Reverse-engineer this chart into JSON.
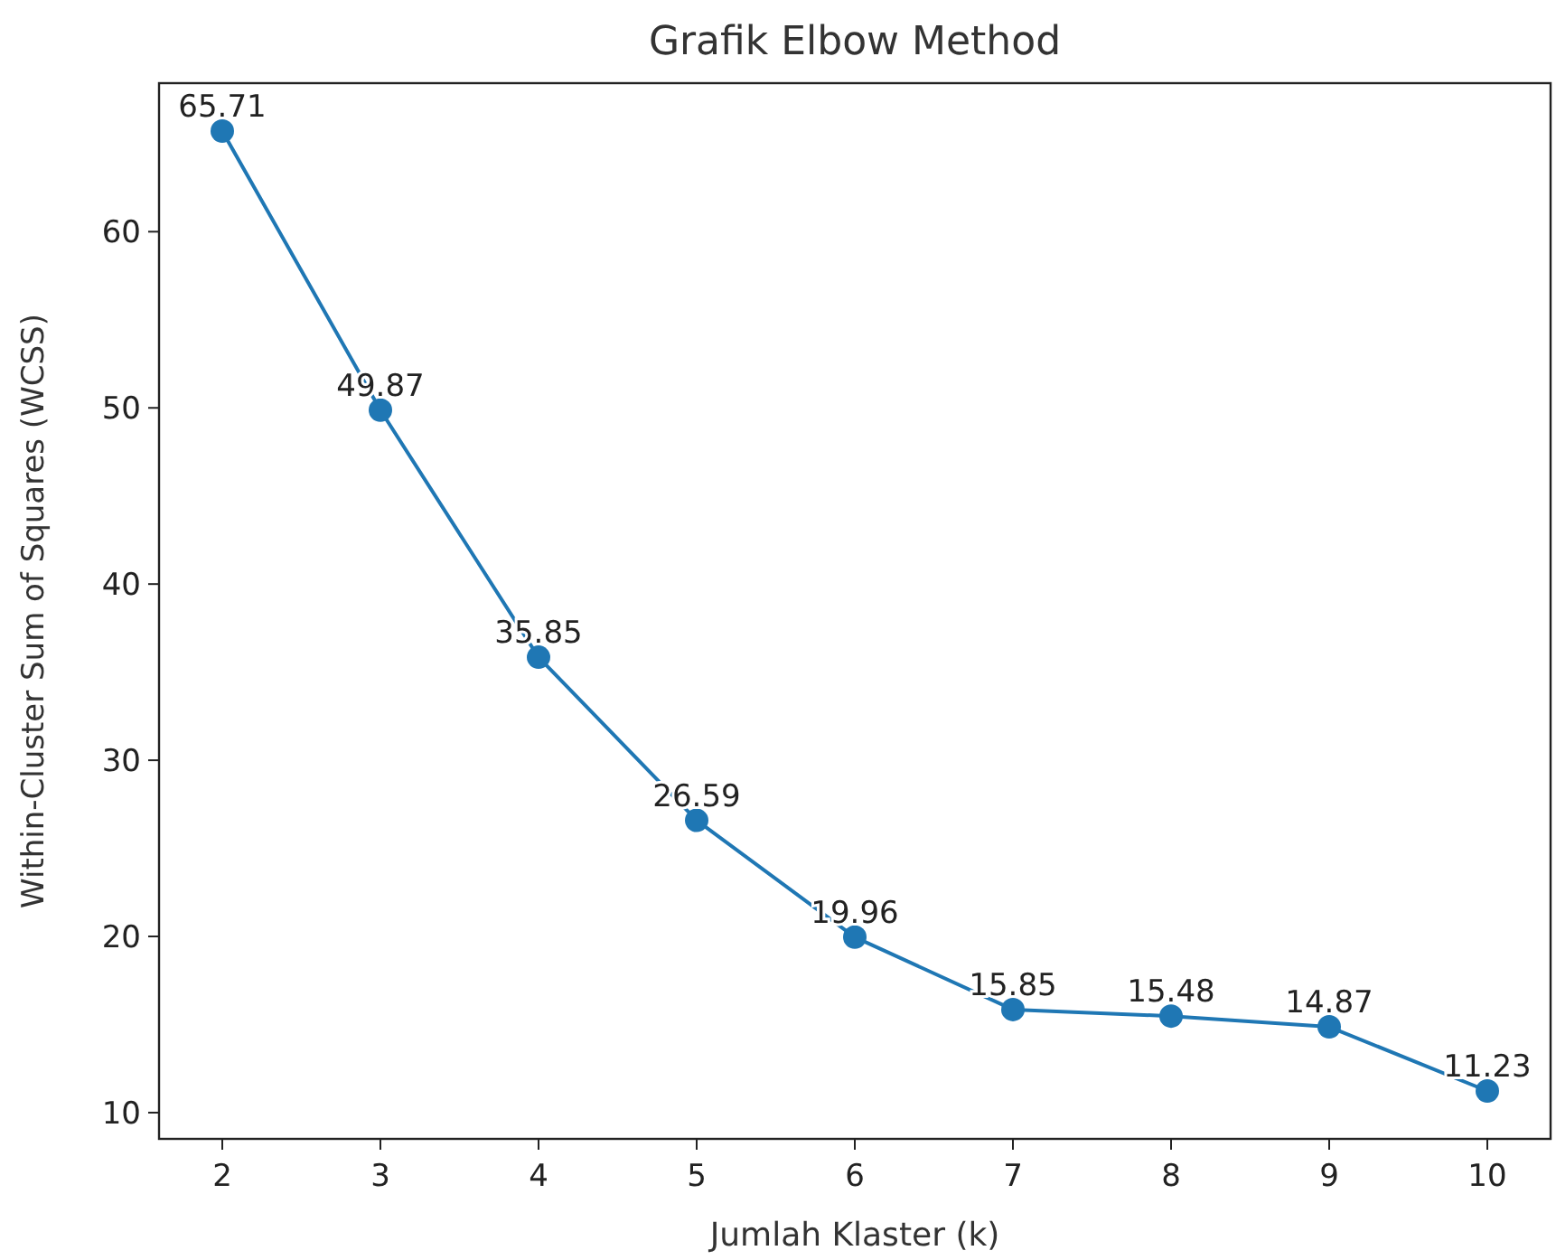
{
  "chart_data": {
    "type": "line",
    "title": "Grafik Elbow Method",
    "xlabel": "Jumlah Klaster (k)",
    "ylabel": "Within-Cluster Sum of Squares (WCSS)",
    "x": [
      2,
      3,
      4,
      5,
      6,
      7,
      8,
      9,
      10
    ],
    "series": [
      {
        "color": "#1f77b4",
        "values": [
          65.71,
          49.87,
          35.85,
          26.59,
          19.96,
          15.85,
          15.48,
          14.87,
          11.23
        ]
      }
    ],
    "xlim": [
      1.6,
      10.4
    ],
    "xticks": [
      2,
      3,
      4,
      5,
      6,
      7,
      8,
      9,
      10
    ],
    "ylim": [
      8.51,
      68.43
    ],
    "yticks": [
      10,
      20,
      30,
      40,
      50,
      60
    ],
    "marker": "circle",
    "line_style": "solid",
    "data_labels": true,
    "grid": false
  }
}
